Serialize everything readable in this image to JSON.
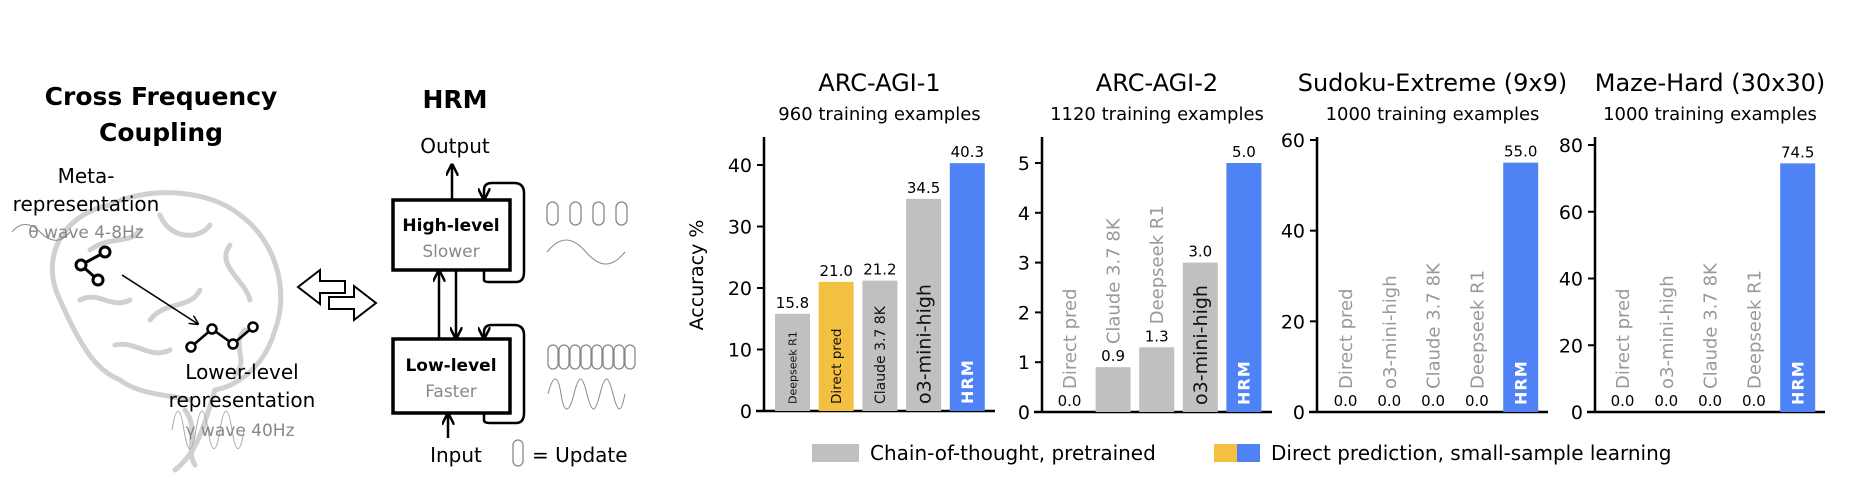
{
  "diagram": {
    "cfc_title_line1": "Cross Frequency",
    "cfc_title_line2": "Coupling",
    "meta_line1": "Meta-",
    "meta_line2": "representation",
    "theta_wave": "θ wave 4-8Hz",
    "lower_line1": "Lower-level",
    "lower_line2": "representation",
    "gamma_wave": "γ wave 40Hz",
    "hrm_title": "HRM",
    "output_label": "Output",
    "input_label": "Input",
    "high_box_title": "High-level",
    "high_box_sub": "Slower",
    "low_box_title": "Low-level",
    "low_box_sub": "Faster",
    "update_legend": "= Update",
    "icons": [
      "brain-icon",
      "node-graph-icon",
      "zigzag-nodes-icon",
      "double-arrow-icon",
      "capsule-update-icon",
      "sine-wave-icon"
    ]
  },
  "colors": {
    "cot": "#c0c0c0",
    "direct_yellow": "#f4c042",
    "direct_blue": "#4f83f5",
    "muted_text": "#999999"
  },
  "legend": {
    "items": [
      {
        "label": "Chain-of-thought, pretrained",
        "colors": [
          "#c0c0c0"
        ]
      },
      {
        "label": "Direct prediction, small-sample learning",
        "colors": [
          "#f4c042",
          "#4f83f5"
        ]
      }
    ],
    "placement": "bottom"
  },
  "chart_data": [
    {
      "type": "bar",
      "title": "ARC-AGI-1",
      "subtitle": "960 training examples",
      "ylabel": "Accuracy %",
      "ylim": [
        0,
        44
      ],
      "yticks": [
        0,
        10,
        20,
        30,
        40
      ],
      "categories": [
        "Deepseek R1",
        "Direct pred",
        "Claude 3.7 8K",
        "o3-mini-high",
        "HRM"
      ],
      "values": [
        15.8,
        21.0,
        21.2,
        34.5,
        40.3
      ],
      "value_labels": [
        "15.8",
        "21.0",
        "21.2",
        "34.5",
        "40.3"
      ],
      "bar_colors": [
        "#c0c0c0",
        "#f4c042",
        "#c0c0c0",
        "#c0c0c0",
        "#4f83f5"
      ]
    },
    {
      "type": "bar",
      "title": "ARC-AGI-2",
      "subtitle": "1120 training examples",
      "ylim": [
        0,
        5.5
      ],
      "yticks": [
        0,
        1,
        2,
        3,
        4,
        5
      ],
      "categories": [
        "Direct pred",
        "Claude 3.7 8K",
        "Deepseek R1",
        "o3-mini-high",
        "HRM"
      ],
      "values": [
        0.0,
        0.9,
        1.3,
        3.0,
        5.0
      ],
      "value_labels": [
        "0.0",
        "0.9",
        "1.3",
        "3.0",
        "5.0"
      ],
      "bar_colors": [
        "#f4c042",
        "#c0c0c0",
        "#c0c0c0",
        "#c0c0c0",
        "#4f83f5"
      ]
    },
    {
      "type": "bar",
      "title": "Sudoku-Extreme (9x9)",
      "subtitle": "1000 training examples",
      "ylim": [
        0,
        60
      ],
      "yticks": [
        0,
        20,
        40,
        60
      ],
      "categories": [
        "Direct pred",
        "o3-mini-high",
        "Claude 3.7 8K",
        "Deepseek R1",
        "HRM"
      ],
      "values": [
        0.0,
        0.0,
        0.0,
        0.0,
        55.0
      ],
      "value_labels": [
        "0.0",
        "0.0",
        "0.0",
        "0.0",
        "55.0"
      ],
      "bar_colors": [
        "#f4c042",
        "#c0c0c0",
        "#c0c0c0",
        "#c0c0c0",
        "#4f83f5"
      ]
    },
    {
      "type": "bar",
      "title": "Maze-Hard (30x30)",
      "subtitle": "1000 training examples",
      "ylim": [
        0,
        80
      ],
      "yticks": [
        0,
        20,
        40,
        60,
        80
      ],
      "categories": [
        "Direct pred",
        "o3-mini-high",
        "Claude 3.7 8K",
        "Deepseek R1",
        "HRM"
      ],
      "values": [
        0.0,
        0.0,
        0.0,
        0.0,
        74.5
      ],
      "value_labels": [
        "0.0",
        "0.0",
        "0.0",
        "0.0",
        "74.5"
      ],
      "bar_colors": [
        "#f4c042",
        "#c0c0c0",
        "#c0c0c0",
        "#c0c0c0",
        "#4f83f5"
      ]
    }
  ]
}
